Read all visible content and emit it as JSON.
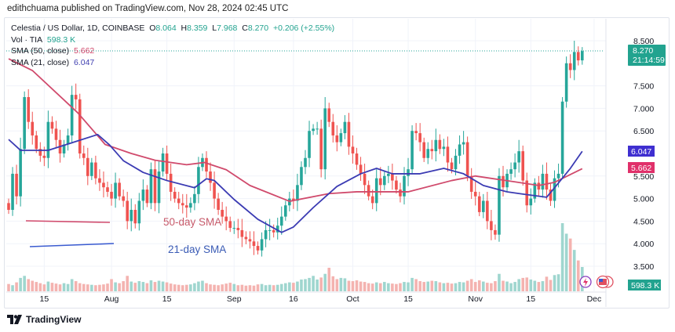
{
  "publisher_line": "edithchuama published on TradingView.com, Nov 28, 2024 02:45 UTC",
  "legend": {
    "symbol": "Celestia / US Dollar, 1D, COINBASE",
    "o_label": "O",
    "o": "8.064",
    "h_label": "H",
    "h": "8.359",
    "l_label": "L",
    "l": "7.968",
    "c_label": "C",
    "c": "8.270",
    "change": "+0.206 (+2.55%)",
    "vol_label": "Vol · TIA",
    "vol": "598.3 K",
    "sma50_label": "SMA (50, close)",
    "sma50": "5.662",
    "sma21_label": "SMA (21, close)",
    "sma21": "6.047"
  },
  "annotations": {
    "sma50_text": "50-day SMA",
    "sma21_text": "21-day SMA"
  },
  "price_badge": {
    "price": "8.270",
    "countdown": "21:14:59"
  },
  "sma21_badge": "6.047",
  "sma50_badge": "5.662",
  "volume_badge": "598.3 K",
  "footer": {
    "brand": "TradingView"
  },
  "colors": {
    "up": "#26a69a",
    "down": "#ef5350",
    "sma50": "#d04a6c",
    "sma21": "#3b3bb3",
    "up_vol": "#9fd6cf",
    "down_vol": "#f4b3b0"
  },
  "chart_data": {
    "type": "candlestick",
    "title": "Celestia / US Dollar, 1D, COINBASE",
    "ylim": [
      3.3,
      8.75
    ],
    "y_ticks": [
      "3.500",
      "4.000",
      "4.500",
      "5.000",
      "5.500",
      "6.500",
      "7.000",
      "7.500",
      "8.500"
    ],
    "x_ticks": [
      {
        "label": "15",
        "day": 9
      },
      {
        "label": "Aug",
        "day": 26
      },
      {
        "label": "15",
        "day": 40
      },
      {
        "label": "Sep",
        "day": 57
      },
      {
        "label": "16",
        "day": 72
      },
      {
        "label": "Oct",
        "day": 87
      },
      {
        "label": "15",
        "day": 101
      },
      {
        "label": "Nov",
        "day": 118
      },
      {
        "label": "15",
        "day": 132
      },
      {
        "label": "Dec",
        "day": 148
      }
    ],
    "start_date": "2024-07-06",
    "first_open": 4.9,
    "closes": [
      4.75,
      5.55,
      5.05,
      6.1,
      7.25,
      6.7,
      6.4,
      6.1,
      5.95,
      5.9,
      6.7,
      6.55,
      6.3,
      6.0,
      6.2,
      6.4,
      7.3,
      7.2,
      6.0,
      5.9,
      5.5,
      5.8,
      5.45,
      5.35,
      5.25,
      5.15,
      5.0,
      5.35,
      5.05,
      4.95,
      4.5,
      4.75,
      4.45,
      4.95,
      5.2,
      4.9,
      5.65,
      4.9,
      5.6,
      6.0,
      5.55,
      5.15,
      5.0,
      4.9,
      4.85,
      4.8,
      4.9,
      5.1,
      5.7,
      5.9,
      5.6,
      5.35,
      5.0,
      4.75,
      4.6,
      4.5,
      4.35,
      4.35,
      4.3,
      4.15,
      4.1,
      4.05,
      3.95,
      3.85,
      4.1,
      4.3,
      4.3,
      4.25,
      4.4,
      4.6,
      4.85,
      5.0,
      4.95,
      5.3,
      5.7,
      5.9,
      6.5,
      6.55,
      6.55,
      5.65,
      7.0,
      6.7,
      6.4,
      6.25,
      6.45,
      6.7,
      6.15,
      6.0,
      5.75,
      5.55,
      5.3,
      5.05,
      4.9,
      5.45,
      5.3,
      5.5,
      5.55,
      5.4,
      5.2,
      5.05,
      5.5,
      5.65,
      6.5,
      6.45,
      6.25,
      5.9,
      6.1,
      6.05,
      6.3,
      6.1,
      6.15,
      5.8,
      5.65,
      5.95,
      6.2,
      6.25,
      5.5,
      5.15,
      5.05,
      4.7,
      4.95,
      4.5,
      4.3,
      4.2,
      5.5,
      5.25,
      5.55,
      5.65,
      5.8,
      6.05,
      5.4,
      4.85,
      5.0,
      5.35,
      5.2,
      5.55,
      5.2,
      4.95,
      5.45,
      5.55,
      7.15,
      8.0,
      7.85,
      8.25,
      8.064,
      8.27
    ],
    "volumes_k": [
      180,
      150,
      220,
      330,
      380,
      300,
      260,
      230,
      200,
      170,
      240,
      210,
      190,
      170,
      200,
      180,
      300,
      250,
      200,
      180,
      170,
      160,
      150,
      160,
      170,
      190,
      300,
      220,
      200,
      250,
      380,
      240,
      210,
      250,
      230,
      200,
      270,
      230,
      260,
      240,
      220,
      190,
      170,
      160,
      150,
      160,
      170,
      200,
      240,
      260,
      200,
      170,
      160,
      150,
      170,
      190,
      210,
      180,
      150,
      160,
      140,
      150,
      140,
      170,
      180,
      150,
      160,
      150,
      160,
      180,
      200,
      220,
      210,
      240,
      290,
      300,
      330,
      380,
      290,
      340,
      430,
      580,
      370,
      300,
      330,
      320,
      260,
      250,
      270,
      240,
      230,
      200,
      190,
      220,
      200,
      230,
      200,
      190,
      180,
      200,
      230,
      220,
      330,
      300,
      250,
      230,
      240,
      260,
      250,
      220,
      200,
      210,
      190,
      200,
      230,
      220,
      260,
      300,
      230,
      270,
      240,
      210,
      200,
      250,
      430,
      260,
      240,
      200,
      230,
      300,
      330,
      340,
      290,
      260,
      230,
      250,
      360,
      280,
      400,
      420,
      1680,
      1420,
      1300,
      1020,
      760,
      598.3
    ],
    "sma50": [
      [
        0,
        8.1
      ],
      [
        6,
        7.84
      ],
      [
        17.5,
        6.9
      ],
      [
        24.4,
        6.2
      ],
      [
        31,
        6.0
      ],
      [
        37,
        5.85
      ],
      [
        45,
        5.75
      ],
      [
        49.5,
        5.8
      ],
      [
        55,
        5.64
      ],
      [
        61,
        5.29
      ],
      [
        71,
        4.94
      ],
      [
        81,
        5.11
      ],
      [
        88,
        5.15
      ],
      [
        101,
        5.15
      ],
      [
        112,
        5.4
      ],
      [
        118,
        5.5
      ],
      [
        128,
        5.37
      ],
      [
        134,
        5.29
      ],
      [
        138,
        5.36
      ],
      [
        145,
        5.662
      ]
    ],
    "sma21": [
      [
        0,
        6.31
      ],
      [
        3,
        6.07
      ],
      [
        10,
        6.07
      ],
      [
        17.5,
        6.28
      ],
      [
        22.5,
        6.42
      ],
      [
        25.5,
        6.19
      ],
      [
        29,
        5.84
      ],
      [
        34,
        5.58
      ],
      [
        40,
        5.4
      ],
      [
        47,
        5.24
      ],
      [
        50,
        5.44
      ],
      [
        52,
        5.4
      ],
      [
        57,
        4.98
      ],
      [
        63,
        4.54
      ],
      [
        69,
        4.25
      ],
      [
        72,
        4.37
      ],
      [
        77,
        4.8
      ],
      [
        83,
        5.27
      ],
      [
        89,
        5.55
      ],
      [
        93,
        5.67
      ],
      [
        97,
        5.55
      ],
      [
        104,
        5.55
      ],
      [
        110,
        5.67
      ],
      [
        115,
        5.55
      ],
      [
        120,
        5.29
      ],
      [
        126,
        5.15
      ],
      [
        130,
        5.1
      ],
      [
        136,
        5.03
      ],
      [
        138,
        5.24
      ],
      [
        142,
        5.67
      ],
      [
        145,
        6.047
      ]
    ]
  }
}
